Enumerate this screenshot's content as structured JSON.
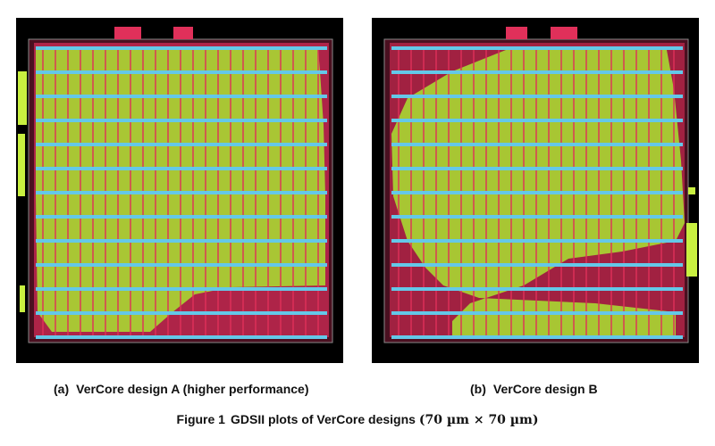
{
  "figure": {
    "number": "Figure 1",
    "caption": "GDSII plots of VerCore designs",
    "dimensions": "(70 µm × 70 µm)"
  },
  "panels": [
    {
      "label": "(a)",
      "caption": "VerCore design A (higher performance)"
    },
    {
      "label": "(b)",
      "caption": "VerCore design B"
    }
  ],
  "colors": {
    "background": "#000000",
    "logic": "#b8e23a",
    "routing": "#e0305a",
    "power_rail": "#64c8e8",
    "boundary": "#9a9a9a"
  }
}
